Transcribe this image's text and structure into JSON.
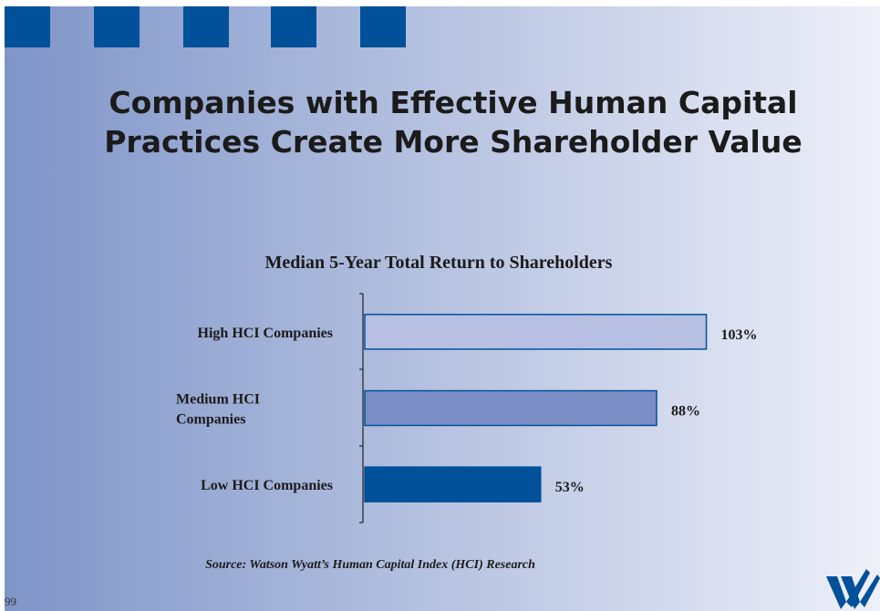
{
  "slide": {
    "title": [
      "Companies with Effective Human Capital",
      "Practices Create More Shareholder Value"
    ],
    "source": "Source:  Watson Wyatt’s Human Capital Index (HCI) Research",
    "page_number": "99"
  },
  "chart_data": {
    "type": "bar",
    "orientation": "horizontal",
    "title": "Median 5-Year Total Return to Shareholders",
    "categories": [
      "High HCI Companies",
      "Medium HCI Companies",
      "Low HCI Companies"
    ],
    "values": [
      103,
      88,
      53
    ],
    "value_labels": [
      "103%",
      "88%",
      "53%"
    ],
    "colors": [
      "#b7c0e2",
      "#7b8fc6",
      "#00509a"
    ],
    "xlim": [
      0,
      110
    ]
  }
}
